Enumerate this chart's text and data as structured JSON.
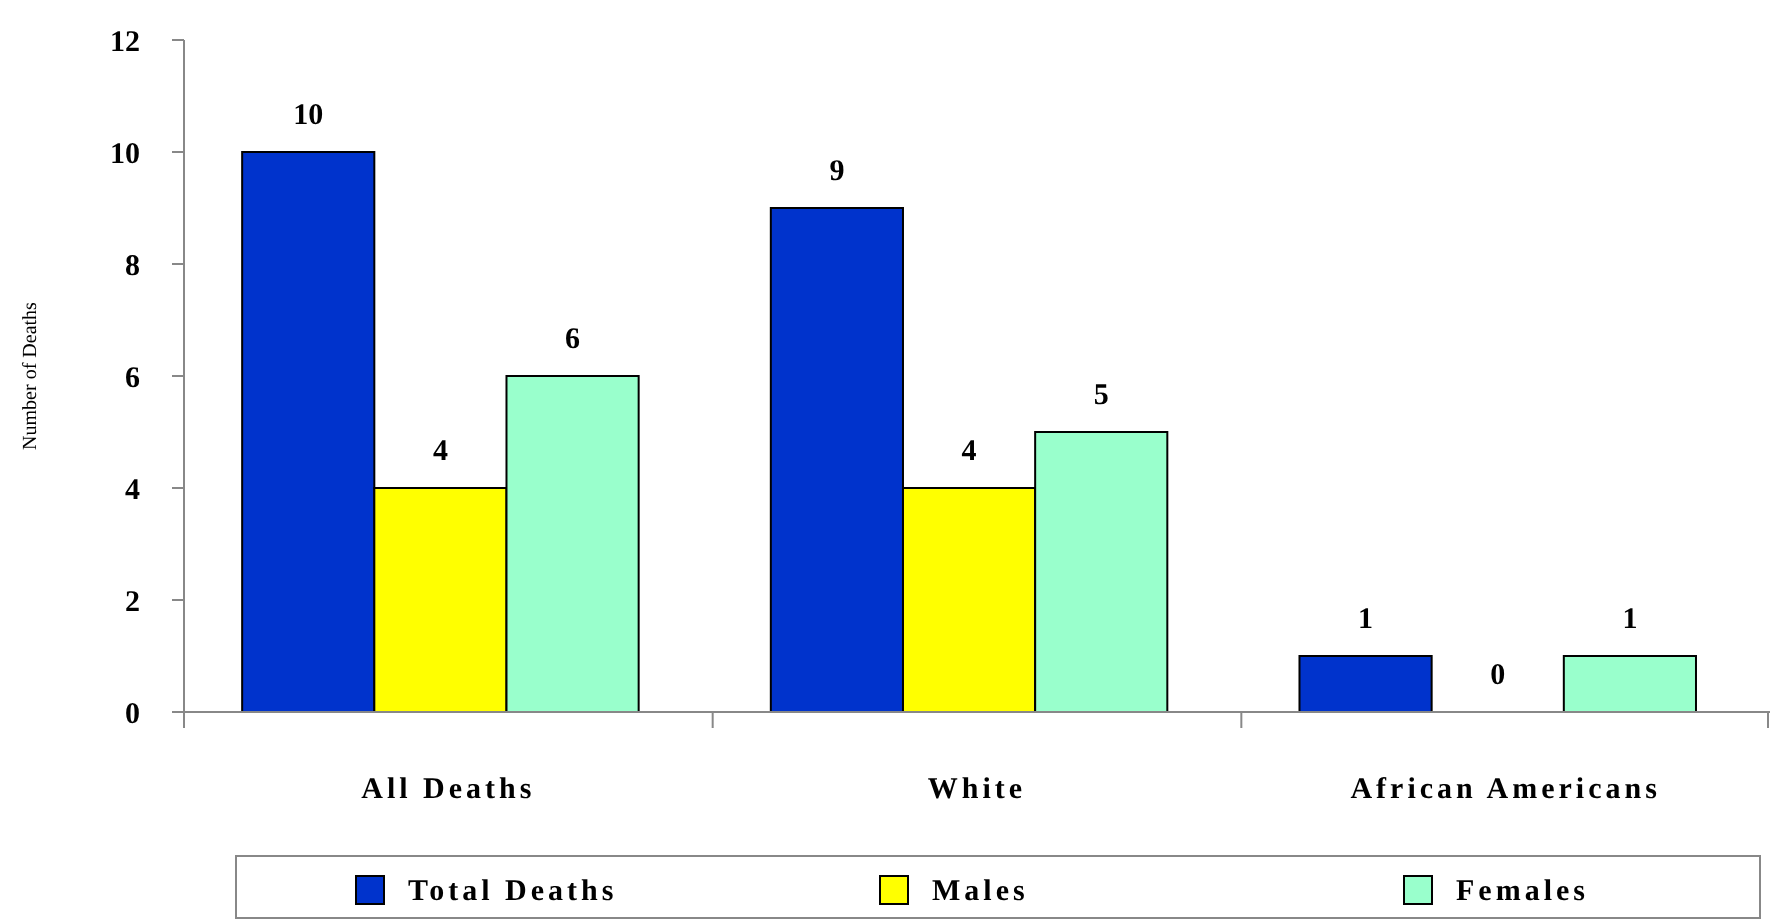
{
  "chart_data": {
    "type": "bar",
    "ylabel": "Number of Deaths",
    "categories": [
      "All Deaths",
      "White",
      "African Americans"
    ],
    "series": [
      {
        "name": "Total Deaths",
        "color": "#0033cc",
        "values": [
          10,
          9,
          1
        ]
      },
      {
        "name": "Males",
        "color": "#ffff00",
        "values": [
          4,
          4,
          0
        ]
      },
      {
        "name": "Females",
        "color": "#99ffcc",
        "values": [
          6,
          5,
          1
        ]
      }
    ],
    "ylim": [
      0,
      12
    ],
    "yticks": [
      0,
      2,
      4,
      6,
      8,
      10,
      12
    ],
    "data_labels": true,
    "legend": "bottom",
    "grid": false
  }
}
